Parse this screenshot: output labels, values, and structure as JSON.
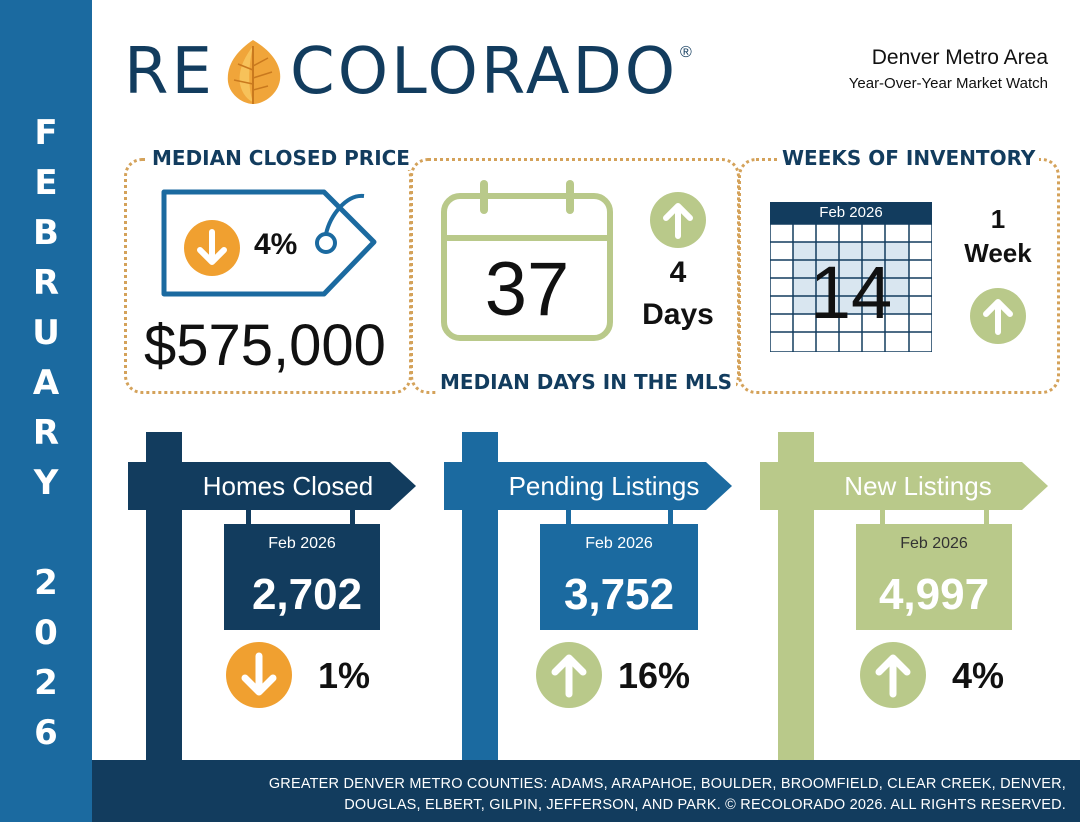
{
  "brand": {
    "logo_left": "RE",
    "logo_right": "COLORADO",
    "registered": "®"
  },
  "header": {
    "area": "Denver Metro Area",
    "subtitle": "Year-Over-Year Market Watch"
  },
  "sidebar": {
    "month_letters": [
      "F",
      "E",
      "B",
      "R",
      "U",
      "A",
      "R",
      "Y"
    ],
    "year_digits": [
      "2",
      "0",
      "2",
      "6"
    ]
  },
  "median_price": {
    "title": "MEDIAN CLOSED PRICE",
    "change_pct": "4%",
    "direction": "down",
    "value": "$575,000"
  },
  "median_days": {
    "title": "MEDIAN DAYS IN THE MLS",
    "value": "37",
    "change_value": "4",
    "change_unit": "Days",
    "direction": "up"
  },
  "weeks_inventory": {
    "title": "WEEKS OF INVENTORY",
    "period": "Feb 2026",
    "value": "14",
    "change_value": "1",
    "change_unit": "Week",
    "direction": "up"
  },
  "signs": [
    {
      "title": "Homes Closed",
      "period": "Feb 2026",
      "value": "2,702",
      "change_pct": "1%",
      "direction": "down"
    },
    {
      "title": "Pending Listings",
      "period": "Feb 2026",
      "value": "3,752",
      "change_pct": "16%",
      "direction": "up"
    },
    {
      "title": "New Listings",
      "period": "Feb 2026",
      "value": "4,997",
      "change_pct": "4%",
      "direction": "up"
    }
  ],
  "footer": {
    "line1": "GREATER DENVER METRO COUNTIES: ADAMS, ARAPAHOE, BOULDER, BROOMFIELD, CLEAR CREEK, DENVER,",
    "line2": "DOUGLAS, ELBERT, GILPIN, JEFFERSON, AND PARK. © RECOLORADO 2026. ALL RIGHTS RESERVED."
  },
  "colors": {
    "navy": "#123c5e",
    "blue": "#1b6aa0",
    "green": "#b9c98a",
    "orange": "#f0a030",
    "dotted": "#d4a25a"
  }
}
